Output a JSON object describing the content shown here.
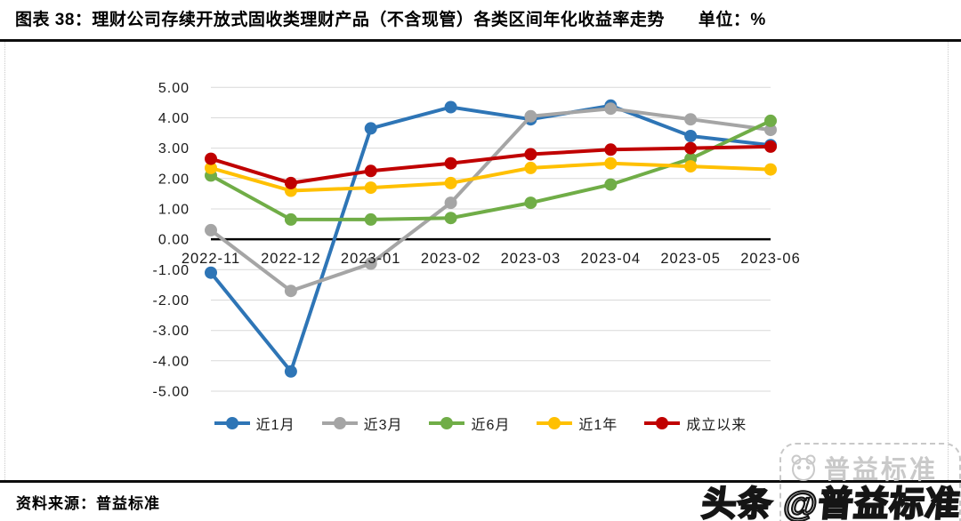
{
  "page": {
    "title": "图表 38：理财公司存续开放式固收类理财产品（不含现管）各类区间年化收益率走势",
    "unit": "单位：%",
    "source": "资料来源：普益标准",
    "watermark_gray": "普益标准",
    "watermark_toutiao": "头条 @普益标准"
  },
  "chart_data": {
    "type": "line",
    "title": "理财公司存续开放式固收类理财产品（不含现管）各类区间年化收益率走势",
    "unit": "%",
    "categories": [
      "2022-11",
      "2022-12",
      "2023-01",
      "2023-02",
      "2023-03",
      "2023-04",
      "2023-05",
      "2023-06"
    ],
    "series": [
      {
        "name": "近1月",
        "color": "#2E75B6",
        "values": [
          -1.1,
          -4.35,
          3.65,
          4.35,
          3.95,
          4.4,
          3.4,
          3.1
        ]
      },
      {
        "name": "近3月",
        "color": "#A5A5A5",
        "values": [
          0.3,
          -1.7,
          -0.8,
          1.2,
          4.05,
          4.3,
          3.95,
          3.6
        ]
      },
      {
        "name": "近6月",
        "color": "#70AD47",
        "values": [
          2.1,
          0.65,
          0.65,
          0.7,
          1.2,
          1.8,
          2.65,
          3.9
        ]
      },
      {
        "name": "近1年",
        "color": "#FFC000",
        "values": [
          2.35,
          1.6,
          1.7,
          1.85,
          2.35,
          2.5,
          2.4,
          2.3
        ]
      },
      {
        "name": "成立以来",
        "color": "#C00000",
        "values": [
          2.65,
          1.85,
          2.25,
          2.5,
          2.8,
          2.95,
          3.0,
          3.05
        ]
      }
    ],
    "ylim": [
      -5,
      5
    ],
    "ytick_step": 1,
    "ytick_format": "two-decimals",
    "grid": true,
    "grid_color": "#d9d9d9",
    "axis_color": "#000000",
    "legend_position": "bottom"
  }
}
